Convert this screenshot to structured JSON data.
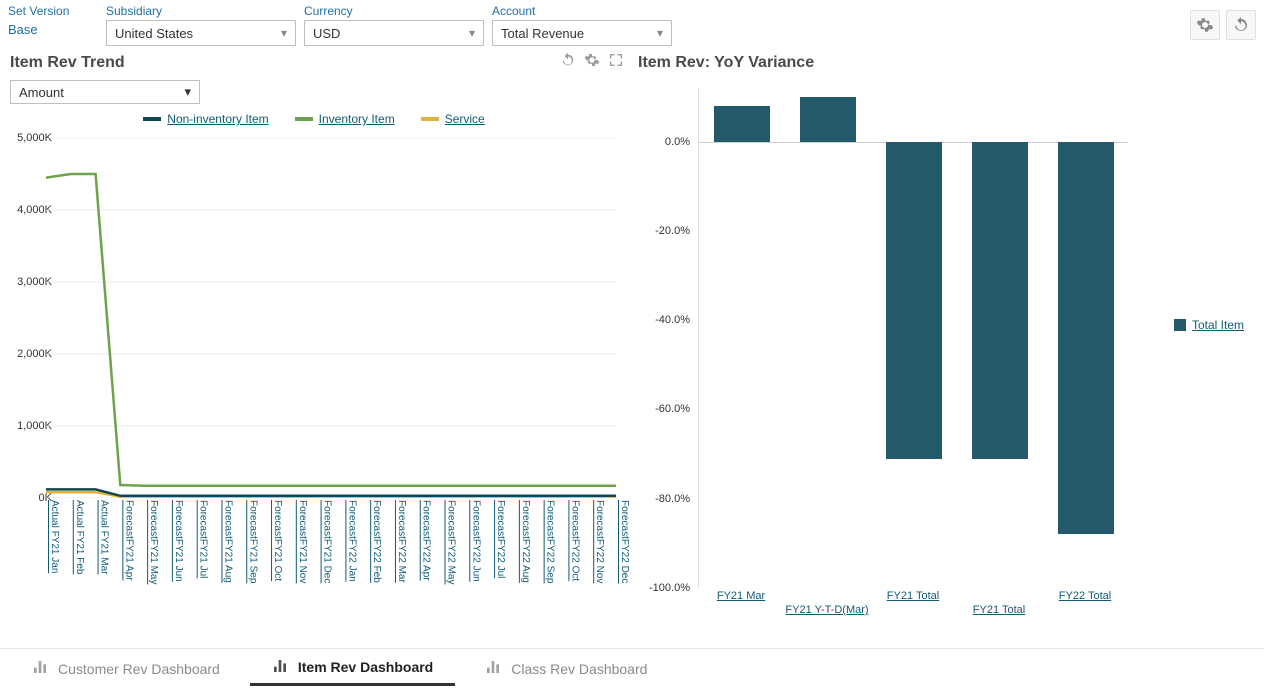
{
  "filters": {
    "set_version": {
      "label": "Set Version",
      "value": "Base"
    },
    "subsidiary": {
      "label": "Subsidiary",
      "value": "United States"
    },
    "currency": {
      "label": "Currency",
      "value": "USD"
    },
    "account": {
      "label": "Account",
      "value": "Total Revenue"
    }
  },
  "trend_chart": {
    "title": "Item Rev Trend",
    "dropdown_value": "Amount",
    "type": "line",
    "legend": [
      {
        "label": "Non-inventory Item",
        "color": "#0e4854"
      },
      {
        "label": "Inventory Item",
        "color": "#6da34d"
      },
      {
        "label": "Service",
        "color": "#e1b33a"
      }
    ],
    "y_axis": {
      "min": 0,
      "max": 5000,
      "ticks": [
        0,
        1000,
        2000,
        3000,
        4000,
        5000
      ],
      "tick_labels": [
        "0K",
        "1,000K",
        "2,000K",
        "3,000K",
        "4,000K",
        "5,000K"
      ]
    },
    "x_labels": [
      "Actual FY21 Jan",
      "Actual FY21 Feb",
      "Actual FY21 Mar",
      "ForecastFY21 Apr",
      "ForecastFY21 May",
      "ForecastFY21 Jun",
      "ForecastFY21 Jul",
      "ForecastFY21 Aug",
      "ForecastFY21 Sep",
      "ForecastFY21 Oct",
      "ForecastFY21 Nov",
      "ForecastFY21 Dec",
      "ForecastFY22 Jan",
      "ForecastFY22 Feb",
      "ForecastFY22 Mar",
      "ForecastFY22 Apr",
      "ForecastFY22 May",
      "ForecastFY22 Jun",
      "ForecastFY22 Jul",
      "ForecastFY22 Aug",
      "ForecastFY22 Sep",
      "ForecastFY22 Oct",
      "ForecastFY22 Nov",
      "ForecastFY22 Dec"
    ],
    "series": {
      "inventory": [
        4450,
        4500,
        4500,
        180,
        170,
        170,
        170,
        170,
        170,
        170,
        170,
        170,
        170,
        170,
        170,
        170,
        170,
        170,
        170,
        170,
        170,
        170,
        170,
        170
      ],
      "non_inventory": [
        120,
        120,
        120,
        30,
        30,
        30,
        30,
        30,
        30,
        30,
        30,
        30,
        30,
        30,
        30,
        30,
        30,
        30,
        30,
        30,
        30,
        30,
        30,
        30
      ],
      "service": [
        80,
        80,
        80,
        20,
        20,
        20,
        20,
        20,
        20,
        20,
        20,
        20,
        20,
        20,
        20,
        20,
        20,
        20,
        20,
        20,
        20,
        20,
        20,
        20
      ]
    },
    "grid_color": "#e9e9e9",
    "line_width": 2.5
  },
  "variance_chart": {
    "title": "Item Rev: YoY Variance",
    "type": "bar",
    "legend_label": "Total Item",
    "bar_color": "#255a6c",
    "y_axis": {
      "min": -100,
      "max": 0,
      "positive_extent": 12,
      "ticks": [
        0,
        -20,
        -40,
        -60,
        -80,
        -100
      ],
      "tick_labels": [
        "0.0%",
        "-20.0%",
        "-40.0%",
        "-60.0%",
        "-80.0%",
        "-100.0%"
      ]
    },
    "bars": [
      {
        "label": "FY21 Mar",
        "value": 8,
        "label_row": 0
      },
      {
        "label": "FY21 Y-T-D(Mar)",
        "value": 10,
        "label_row": 1
      },
      {
        "label": "FY21 Total",
        "value": -71,
        "label_row": 0
      },
      {
        "label": "FY21 Total",
        "value": -71,
        "label_row": 1
      },
      {
        "label": "FY22 Total",
        "value": -88,
        "label_row": 0
      }
    ]
  },
  "tabs": [
    {
      "label": "Customer Rev Dashboard",
      "active": false
    },
    {
      "label": "Item Rev Dashboard",
      "active": true
    },
    {
      "label": "Class Rev Dashboard",
      "active": false
    }
  ]
}
